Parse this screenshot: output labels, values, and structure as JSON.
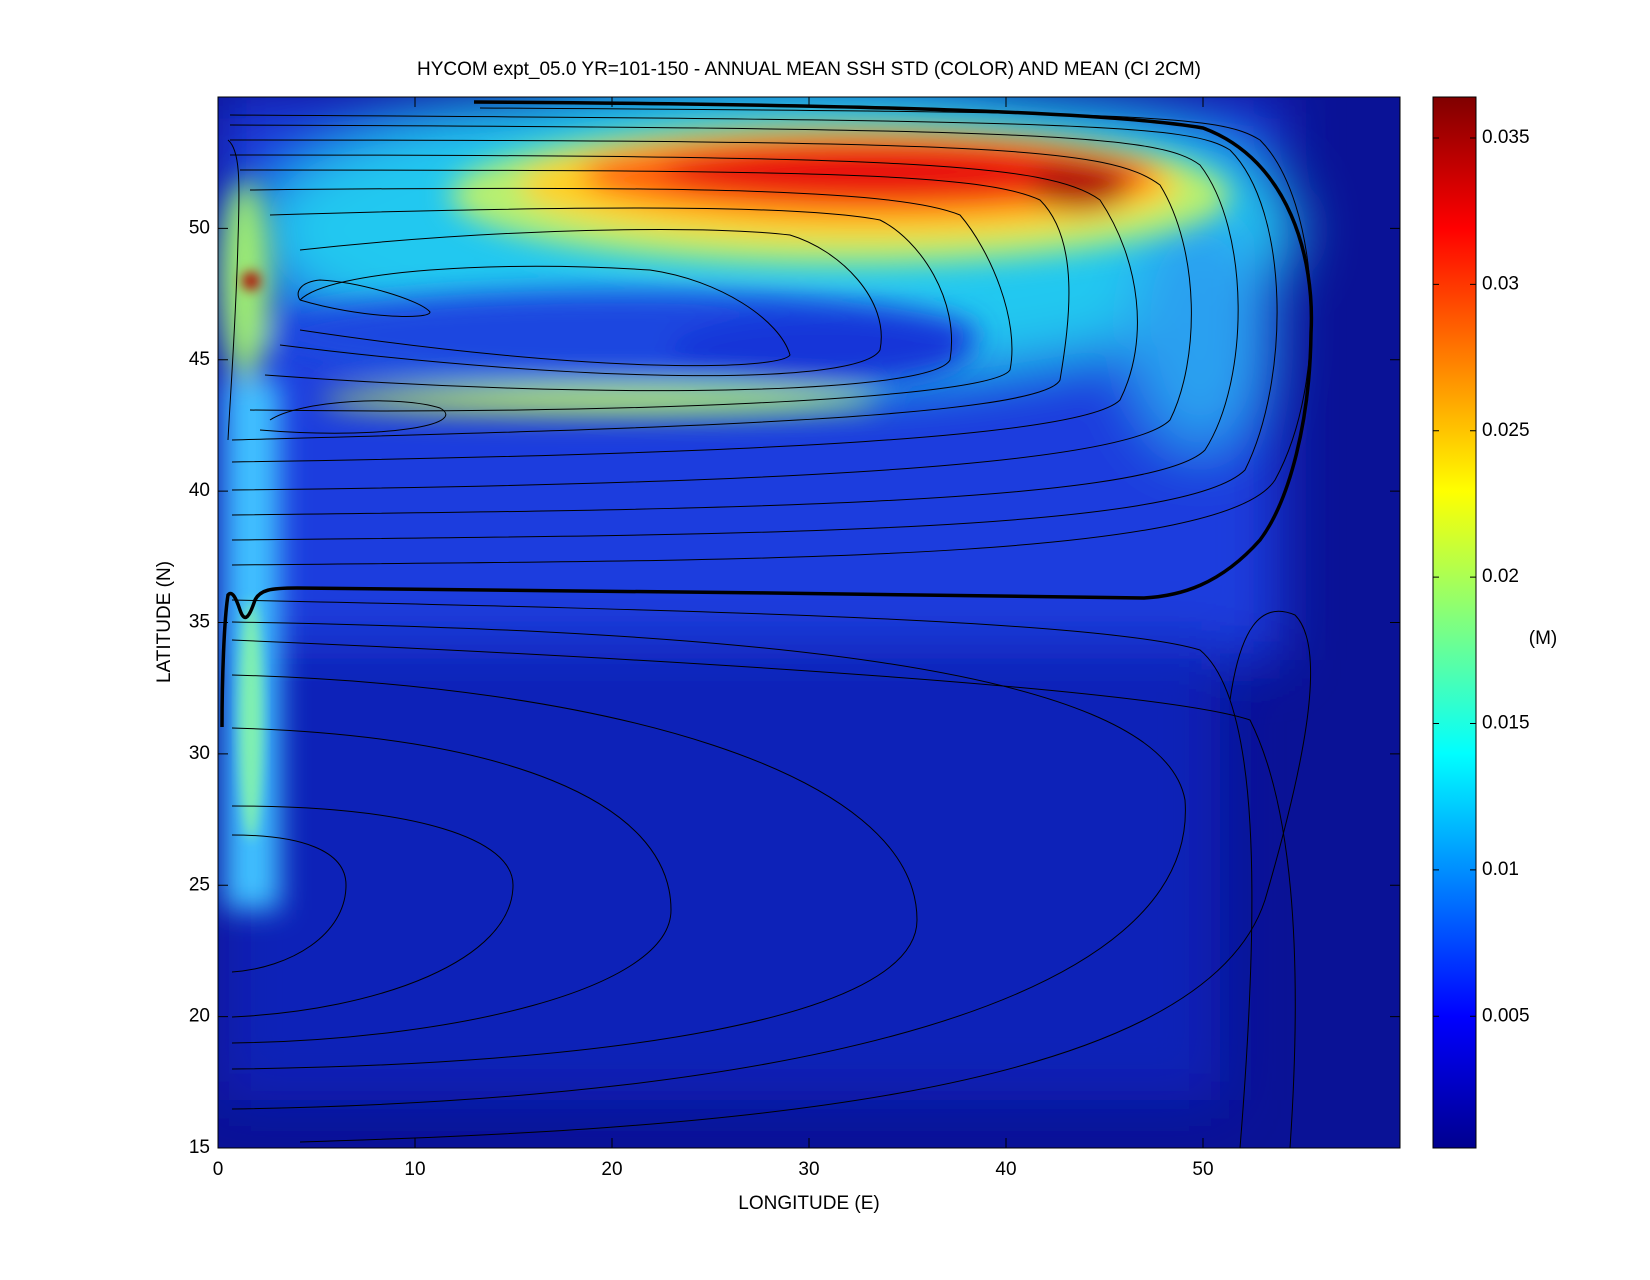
{
  "chart_data": {
    "type": "heatmap",
    "title": "HYCOM expt_05.0 YR=101-150 - ANNUAL MEAN SSH STD (COLOR) AND MEAN (CI 2CM)",
    "xlabel": "LONGITUDE (E)",
    "ylabel": "LATITUDE (N)",
    "xlim": [
      0,
      60
    ],
    "xticks": [
      0,
      10,
      20,
      30,
      40,
      50
    ],
    "ylim": [
      15,
      55
    ],
    "yticks": [
      15,
      20,
      25,
      30,
      35,
      40,
      45,
      50
    ],
    "colorbar": {
      "label": "(M)",
      "colormap": "jet",
      "lim": [
        0.0005,
        0.0364
      ],
      "ticks": [
        0.005,
        0.01,
        0.015,
        0.02,
        0.025,
        0.03,
        0.035
      ]
    }
  }
}
